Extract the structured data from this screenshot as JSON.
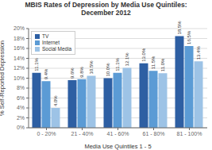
{
  "chart_data": {
    "type": "bar",
    "title": "MBIS Rates of Depression by Media Use Quintiles:\nDecember 2012",
    "xlabel": "Media Use Quintiles 1 - 5",
    "ylabel": "% Self-Reported Depression",
    "categories": [
      "0 - 20%",
      "21 - 40%",
      "41 - 60%",
      "61 - 80%",
      "81 - 100%"
    ],
    "series": [
      {
        "name": "TV",
        "color": "#2E5FA3",
        "values": [
          11.1,
          9.6,
          10.0,
          13.0,
          18.5
        ],
        "value_labels": [
          "11.1%",
          "9.6%",
          "10.0%",
          "13.0%",
          "18.5%"
        ]
      },
      {
        "name": "Internet",
        "color": "#5B9BD5",
        "values": [
          9.4,
          9.8,
          11.1,
          11.5,
          16.5
        ],
        "value_labels": [
          "9.4%",
          "9.8%",
          "11.1%",
          "11.5%",
          "16.5%"
        ]
      },
      {
        "name": "Social Media",
        "color": "#9DC3E6",
        "values": [
          4.0,
          10.5,
          12.1,
          11.0,
          13.4
        ],
        "value_labels": [
          "4.0%",
          "10.5%",
          "12.1%",
          "11.0%",
          "13.4%"
        ]
      }
    ],
    "ylim": [
      0,
      20
    ],
    "yticks": [
      {
        "value": 0,
        "label": "0%"
      },
      {
        "value": 2,
        "label": "2%"
      },
      {
        "value": 4,
        "label": "4%"
      },
      {
        "value": 6,
        "label": "6%"
      },
      {
        "value": 8,
        "label": "8%"
      },
      {
        "value": 10,
        "label": "10%"
      },
      {
        "value": 12,
        "label": "12%"
      },
      {
        "value": 14,
        "label": "14%"
      },
      {
        "value": 16,
        "label": "16%"
      },
      {
        "value": 18,
        "label": "18%"
      },
      {
        "value": 20,
        "label": "20%"
      }
    ],
    "grid": true,
    "legend": "upper left",
    "data_labels": true
  }
}
